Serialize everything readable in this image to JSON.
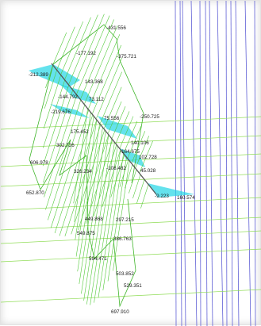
{
  "diagram": {
    "colors": {
      "background": "#ffffff",
      "vertical_lines": "#4a4ad0",
      "horizontal_lines": "#8fdc55",
      "member": "#555555",
      "positive_hatch": "#52c93a",
      "negative_fill": "#22d6e6"
    },
    "labels": [
      {
        "id": "l1",
        "text": "-431.556"
      },
      {
        "id": "l2",
        "text": "-177.192"
      },
      {
        "id": "l3",
        "text": "-375.721"
      },
      {
        "id": "l4",
        "text": "-212.389"
      },
      {
        "id": "l5",
        "text": "143.368"
      },
      {
        "id": "l6",
        "text": "-144.792"
      },
      {
        "id": "l7",
        "text": "73.112"
      },
      {
        "id": "l8",
        "text": "-219.676"
      },
      {
        "id": "l9",
        "text": "75.556"
      },
      {
        "id": "l10",
        "text": "-250.725"
      },
      {
        "id": "l11",
        "text": "175.452"
      },
      {
        "id": "l12",
        "text": "302.726"
      },
      {
        "id": "l13",
        "text": "-164.675"
      },
      {
        "id": "l14",
        "text": "140.106"
      },
      {
        "id": "l15",
        "text": "102.728"
      },
      {
        "id": "l16",
        "text": "606.978"
      },
      {
        "id": "l17",
        "text": "-108.482"
      },
      {
        "id": "l18",
        "text": "326.234"
      },
      {
        "id": "l19",
        "text": "45.028"
      },
      {
        "id": "l20",
        "text": "652.870"
      },
      {
        "id": "l21",
        "text": "-9.223"
      },
      {
        "id": "l22",
        "text": "160.574"
      },
      {
        "id": "l23",
        "text": "449.868"
      },
      {
        "id": "l24",
        "text": "297.215"
      },
      {
        "id": "l25",
        "text": "549.875"
      },
      {
        "id": "l26",
        "text": "386.763"
      },
      {
        "id": "l27",
        "text": "594.471"
      },
      {
        "id": "l28",
        "text": "503.852"
      },
      {
        "id": "l29",
        "text": "529.351"
      },
      {
        "id": "l30",
        "text": "697.910"
      }
    ]
  }
}
